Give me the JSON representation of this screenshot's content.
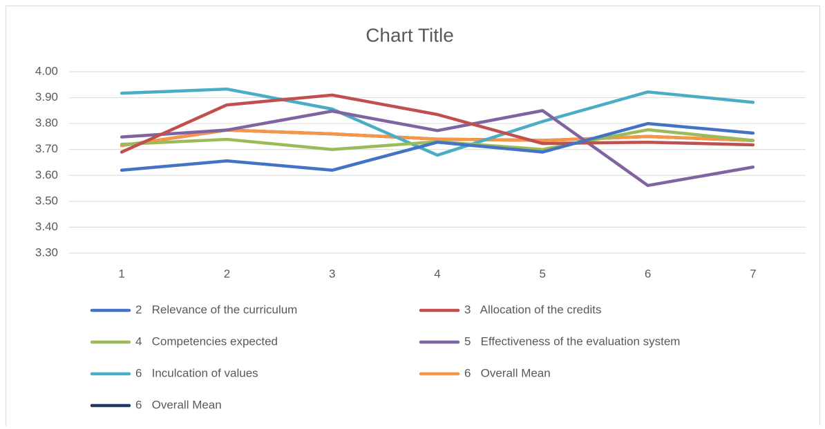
{
  "chart_data": {
    "type": "line",
    "title": "Chart Title",
    "categories": [
      "1",
      "2",
      "3",
      "4",
      "5",
      "6",
      "7"
    ],
    "series": [
      {
        "name": "2   Relevance of the curriculum",
        "color": "#4472c4",
        "values": [
          3.62,
          3.656,
          3.62,
          3.728,
          3.69,
          3.8,
          3.763
        ]
      },
      {
        "name": "3   Allocation of the credits",
        "color": "#c0504d",
        "values": [
          3.69,
          3.872,
          3.91,
          3.835,
          3.723,
          3.728,
          3.718
        ]
      },
      {
        "name": "4   Competencies expected",
        "color": "#9bbb59",
        "values": [
          3.72,
          3.739,
          3.7,
          3.73,
          3.7,
          3.776,
          3.735
        ]
      },
      {
        "name": "5   Effectiveness of the evaluation system",
        "color": "#8064a2",
        "values": [
          3.748,
          3.775,
          3.848,
          3.773,
          3.85,
          3.561,
          3.632
        ]
      },
      {
        "name": "6   Inculcation of values",
        "color": "#4bacc6",
        "values": [
          3.917,
          3.933,
          3.856,
          3.678,
          3.808,
          3.922,
          3.882
        ]
      },
      {
        "name": "6   Overall Mean",
        "color": "#f79646",
        "values": [
          3.715,
          3.775,
          3.76,
          3.74,
          3.735,
          3.75,
          3.735
        ]
      },
      {
        "name": "6   Overall Mean",
        "color": "#1f3864",
        "values": [
          3.715,
          3.775,
          3.76,
          3.74,
          3.735,
          3.75,
          3.735
        ]
      }
    ],
    "ylim": [
      3.3,
      4.0
    ],
    "yticks": [
      {
        "value": 3.3,
        "label": "3.30"
      },
      {
        "value": 3.4,
        "label": "3.40"
      },
      {
        "value": 3.5,
        "label": "3.50"
      },
      {
        "value": 3.6,
        "label": "3.60"
      },
      {
        "value": 3.7,
        "label": "3.70"
      },
      {
        "value": 3.8,
        "label": "3.80"
      },
      {
        "value": 3.9,
        "label": "3.90"
      },
      {
        "value": 4.0,
        "label": "4.00"
      }
    ],
    "grid": true,
    "legend": "bottom"
  }
}
